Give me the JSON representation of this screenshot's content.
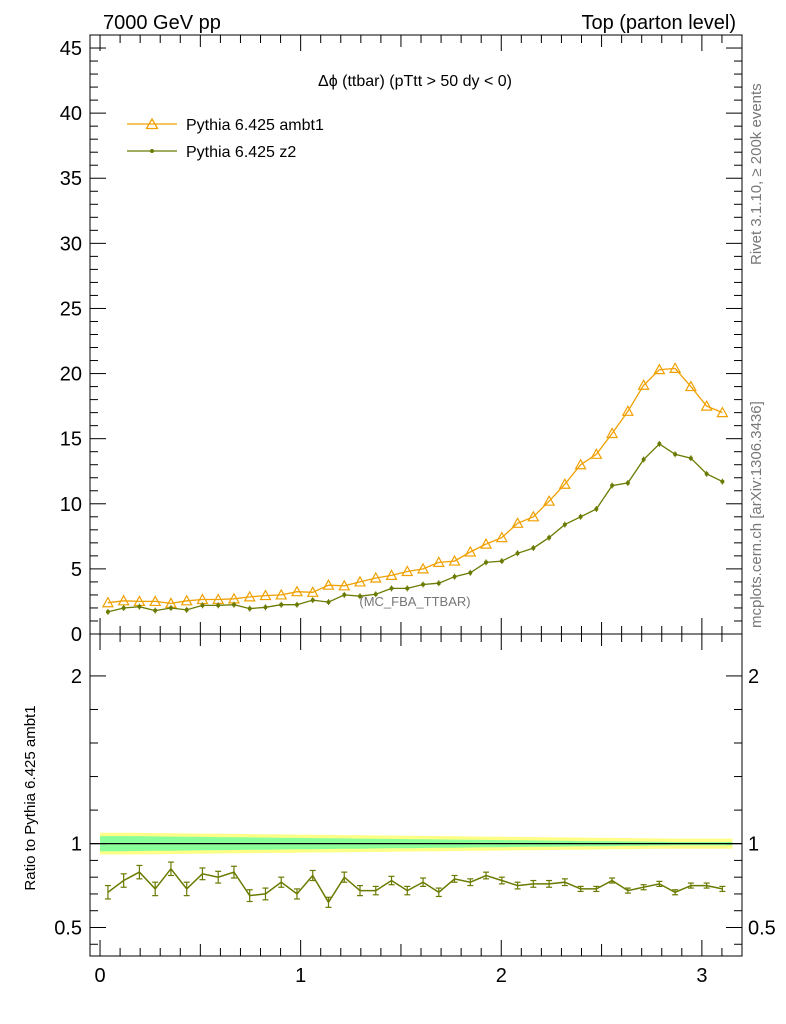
{
  "header": {
    "left": "7000 GeV pp",
    "right": "Top (parton level)"
  },
  "side_labels": {
    "rivet": "Rivet 3.1.10, ≥ 200k events",
    "mcplots": "mcplots.cern.ch [arXiv:1306.3436]"
  },
  "colors": {
    "ambt1": "#f0a000",
    "z2": "#6b7a00",
    "band_outer": "#ffff88",
    "band_inner": "#88ff99"
  },
  "chart_data": [
    {
      "type": "line",
      "title": "Δϕ (ttbar) (pTtt > 50 dy < 0)",
      "annotation": "(MC_FBA_TTBAR)",
      "xlim": [
        -0.05,
        3.2
      ],
      "ylim": [
        0,
        46
      ],
      "y_ticks": [
        0,
        5,
        10,
        15,
        20,
        25,
        30,
        35,
        40,
        45
      ],
      "legend_position": "top-left",
      "x": [
        0.0393,
        0.1178,
        0.1963,
        0.2749,
        0.3534,
        0.432,
        0.5105,
        0.589,
        0.6676,
        0.7461,
        0.8247,
        0.9032,
        0.9817,
        1.0603,
        1.1388,
        1.2174,
        1.2959,
        1.3744,
        1.453,
        1.5315,
        1.6101,
        1.6886,
        1.7671,
        1.8457,
        1.9242,
        2.0028,
        2.0813,
        2.1598,
        2.2384,
        2.3169,
        2.3955,
        2.474,
        2.5525,
        2.6311,
        2.7096,
        2.7882,
        2.8667,
        2.9452,
        3.0238,
        3.1023
      ],
      "series": [
        {
          "name": "Pythia 6.425 ambt1",
          "color_key": "ambt1",
          "marker": "open-triangle",
          "values": [
            2.4,
            2.55,
            2.5,
            2.5,
            2.35,
            2.55,
            2.65,
            2.65,
            2.7,
            2.85,
            2.95,
            3.0,
            3.25,
            3.2,
            3.75,
            3.7,
            4.0,
            4.3,
            4.5,
            4.8,
            5.0,
            5.5,
            5.6,
            6.3,
            6.9,
            7.4,
            8.5,
            9.0,
            10.2,
            11.5,
            13.0,
            13.8,
            15.4,
            17.1,
            19.1,
            20.3,
            20.4,
            19.0,
            17.5,
            17.0
          ]
        },
        {
          "name": "Pythia 6.425 z2",
          "color_key": "z2",
          "marker": "dot",
          "values": [
            1.7,
            2.0,
            2.1,
            1.8,
            2.0,
            1.85,
            2.2,
            2.2,
            2.25,
            1.95,
            2.05,
            2.25,
            2.25,
            2.6,
            2.45,
            3.0,
            2.9,
            3.05,
            3.5,
            3.5,
            3.8,
            3.9,
            4.4,
            4.7,
            5.5,
            5.6,
            6.2,
            6.6,
            7.4,
            8.4,
            9.0,
            9.6,
            11.4,
            11.6,
            13.4,
            14.6,
            13.8,
            13.5,
            12.3,
            11.7
          ]
        }
      ]
    },
    {
      "type": "line",
      "ylabel": "Ratio to Pythia 6.425 ambt1",
      "xlim": [
        -0.05,
        3.2
      ],
      "ylim": [
        0.33,
        2.25
      ],
      "y_ticks": [
        0.5,
        1,
        2
      ],
      "y_tick_labels": [
        "0.5",
        "1",
        "2"
      ],
      "x_ticks": [
        0,
        1,
        2,
        3
      ],
      "x_tick_labels": [
        "0",
        "1",
        "2",
        "3"
      ],
      "reference": 1,
      "series": [
        {
          "name": "Pythia 6.425 z2",
          "color_key": "z2",
          "values": [
            0.71,
            0.78,
            0.83,
            0.73,
            0.85,
            0.73,
            0.82,
            0.8,
            0.83,
            0.69,
            0.7,
            0.77,
            0.7,
            0.81,
            0.65,
            0.8,
            0.72,
            0.72,
            0.78,
            0.72,
            0.77,
            0.71,
            0.79,
            0.77,
            0.81,
            0.78,
            0.75,
            0.76,
            0.76,
            0.77,
            0.73,
            0.73,
            0.78,
            0.72,
            0.74,
            0.76,
            0.71,
            0.75,
            0.75,
            0.73
          ],
          "errors": [
            0.04,
            0.04,
            0.04,
            0.04,
            0.04,
            0.04,
            0.035,
            0.035,
            0.035,
            0.035,
            0.035,
            0.03,
            0.03,
            0.03,
            0.03,
            0.03,
            0.03,
            0.025,
            0.025,
            0.025,
            0.025,
            0.025,
            0.02,
            0.02,
            0.02,
            0.02,
            0.02,
            0.02,
            0.02,
            0.02,
            0.015,
            0.015,
            0.015,
            0.015,
            0.015,
            0.015,
            0.015,
            0.015,
            0.015,
            0.015
          ]
        }
      ],
      "band_outer_halfwidth": [
        0.065,
        0.065,
        0.064,
        0.063,
        0.062,
        0.061,
        0.06,
        0.059,
        0.058,
        0.057,
        0.056,
        0.055,
        0.054,
        0.053,
        0.052,
        0.051,
        0.05,
        0.049,
        0.048,
        0.047,
        0.046,
        0.045,
        0.044,
        0.043,
        0.042,
        0.041,
        0.04,
        0.039,
        0.038,
        0.037,
        0.036,
        0.035,
        0.034,
        0.033,
        0.032,
        0.031,
        0.03,
        0.03,
        0.03,
        0.03
      ],
      "band_inner_halfwidth": [
        0.045,
        0.045,
        0.044,
        0.043,
        0.042,
        0.041,
        0.04,
        0.039,
        0.038,
        0.037,
        0.036,
        0.035,
        0.034,
        0.033,
        0.032,
        0.031,
        0.03,
        0.029,
        0.028,
        0.027,
        0.026,
        0.025,
        0.024,
        0.023,
        0.022,
        0.021,
        0.02,
        0.019,
        0.018,
        0.017,
        0.016,
        0.015,
        0.014,
        0.013,
        0.012,
        0.011,
        0.01,
        0.01,
        0.01,
        0.01
      ]
    }
  ]
}
